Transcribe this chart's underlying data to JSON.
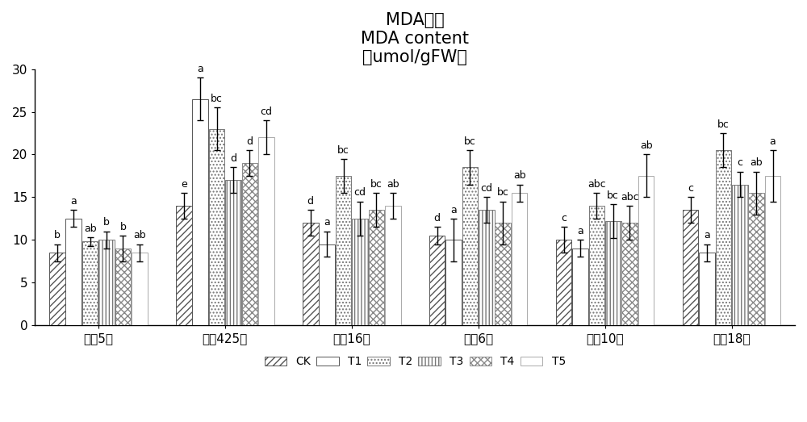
{
  "title_line1": "MDA含量",
  "title_line2": "MDA content",
  "title_line3": "（umol/gFW）",
  "groups": [
    "龙甲5号",
    "东农425号",
    "松桩16号",
    "吉宏6号",
    "长白10号",
    "龙桩18号"
  ],
  "treatments": [
    "CK",
    "T1",
    "T2",
    "T3",
    "T4",
    "T5"
  ],
  "ylim": [
    0,
    30
  ],
  "yticks": [
    0,
    5,
    10,
    15,
    20,
    25,
    30
  ],
  "bar_values": [
    [
      8.5,
      14.0,
      12.0,
      10.5,
      10.0,
      13.5
    ],
    [
      12.5,
      26.5,
      9.5,
      10.0,
      9.0,
      8.5
    ],
    [
      9.8,
      23.0,
      17.5,
      18.5,
      14.0,
      20.5
    ],
    [
      10.0,
      17.0,
      12.5,
      13.5,
      12.2,
      16.5
    ],
    [
      9.0,
      19.0,
      13.5,
      12.0,
      12.0,
      15.5
    ],
    [
      8.5,
      22.0,
      14.0,
      15.5,
      17.5,
      17.5
    ]
  ],
  "error_values": [
    [
      1.0,
      1.5,
      1.5,
      1.0,
      1.5,
      1.5
    ],
    [
      1.0,
      2.5,
      1.5,
      2.5,
      1.0,
      1.0
    ],
    [
      0.5,
      2.5,
      2.0,
      2.0,
      1.5,
      2.0
    ],
    [
      1.0,
      1.5,
      2.0,
      1.5,
      2.0,
      1.5
    ],
    [
      1.5,
      1.5,
      2.0,
      2.5,
      2.0,
      2.5
    ],
    [
      1.0,
      2.0,
      1.5,
      1.0,
      2.5,
      3.0
    ]
  ],
  "sig_labels": [
    [
      "b",
      "e",
      "d",
      "d",
      "c",
      "c"
    ],
    [
      "a",
      "a",
      "a",
      "a",
      "a",
      "a"
    ],
    [
      "ab",
      "bc",
      "bc",
      "bc",
      "abc",
      "bc"
    ],
    [
      "b",
      "d",
      "cd",
      "cd",
      "bc",
      "c"
    ],
    [
      "b",
      "d",
      "bc",
      "bc",
      "abc",
      "ab"
    ],
    [
      "ab",
      "cd",
      "ab",
      "ab",
      "ab",
      "a"
    ]
  ],
  "hatch_patterns": [
    "////",
    "====",
    "....",
    "||||",
    "xxxx",
    "...."
  ],
  "legend_labels": [
    "CK",
    "T1",
    "T2",
    "T3",
    "T4",
    "T5"
  ],
  "bar_width": 0.13,
  "background_color": "#ffffff",
  "title_fontsize": 15,
  "tick_fontsize": 11,
  "sig_fontsize": 9,
  "legend_fontsize": 10
}
